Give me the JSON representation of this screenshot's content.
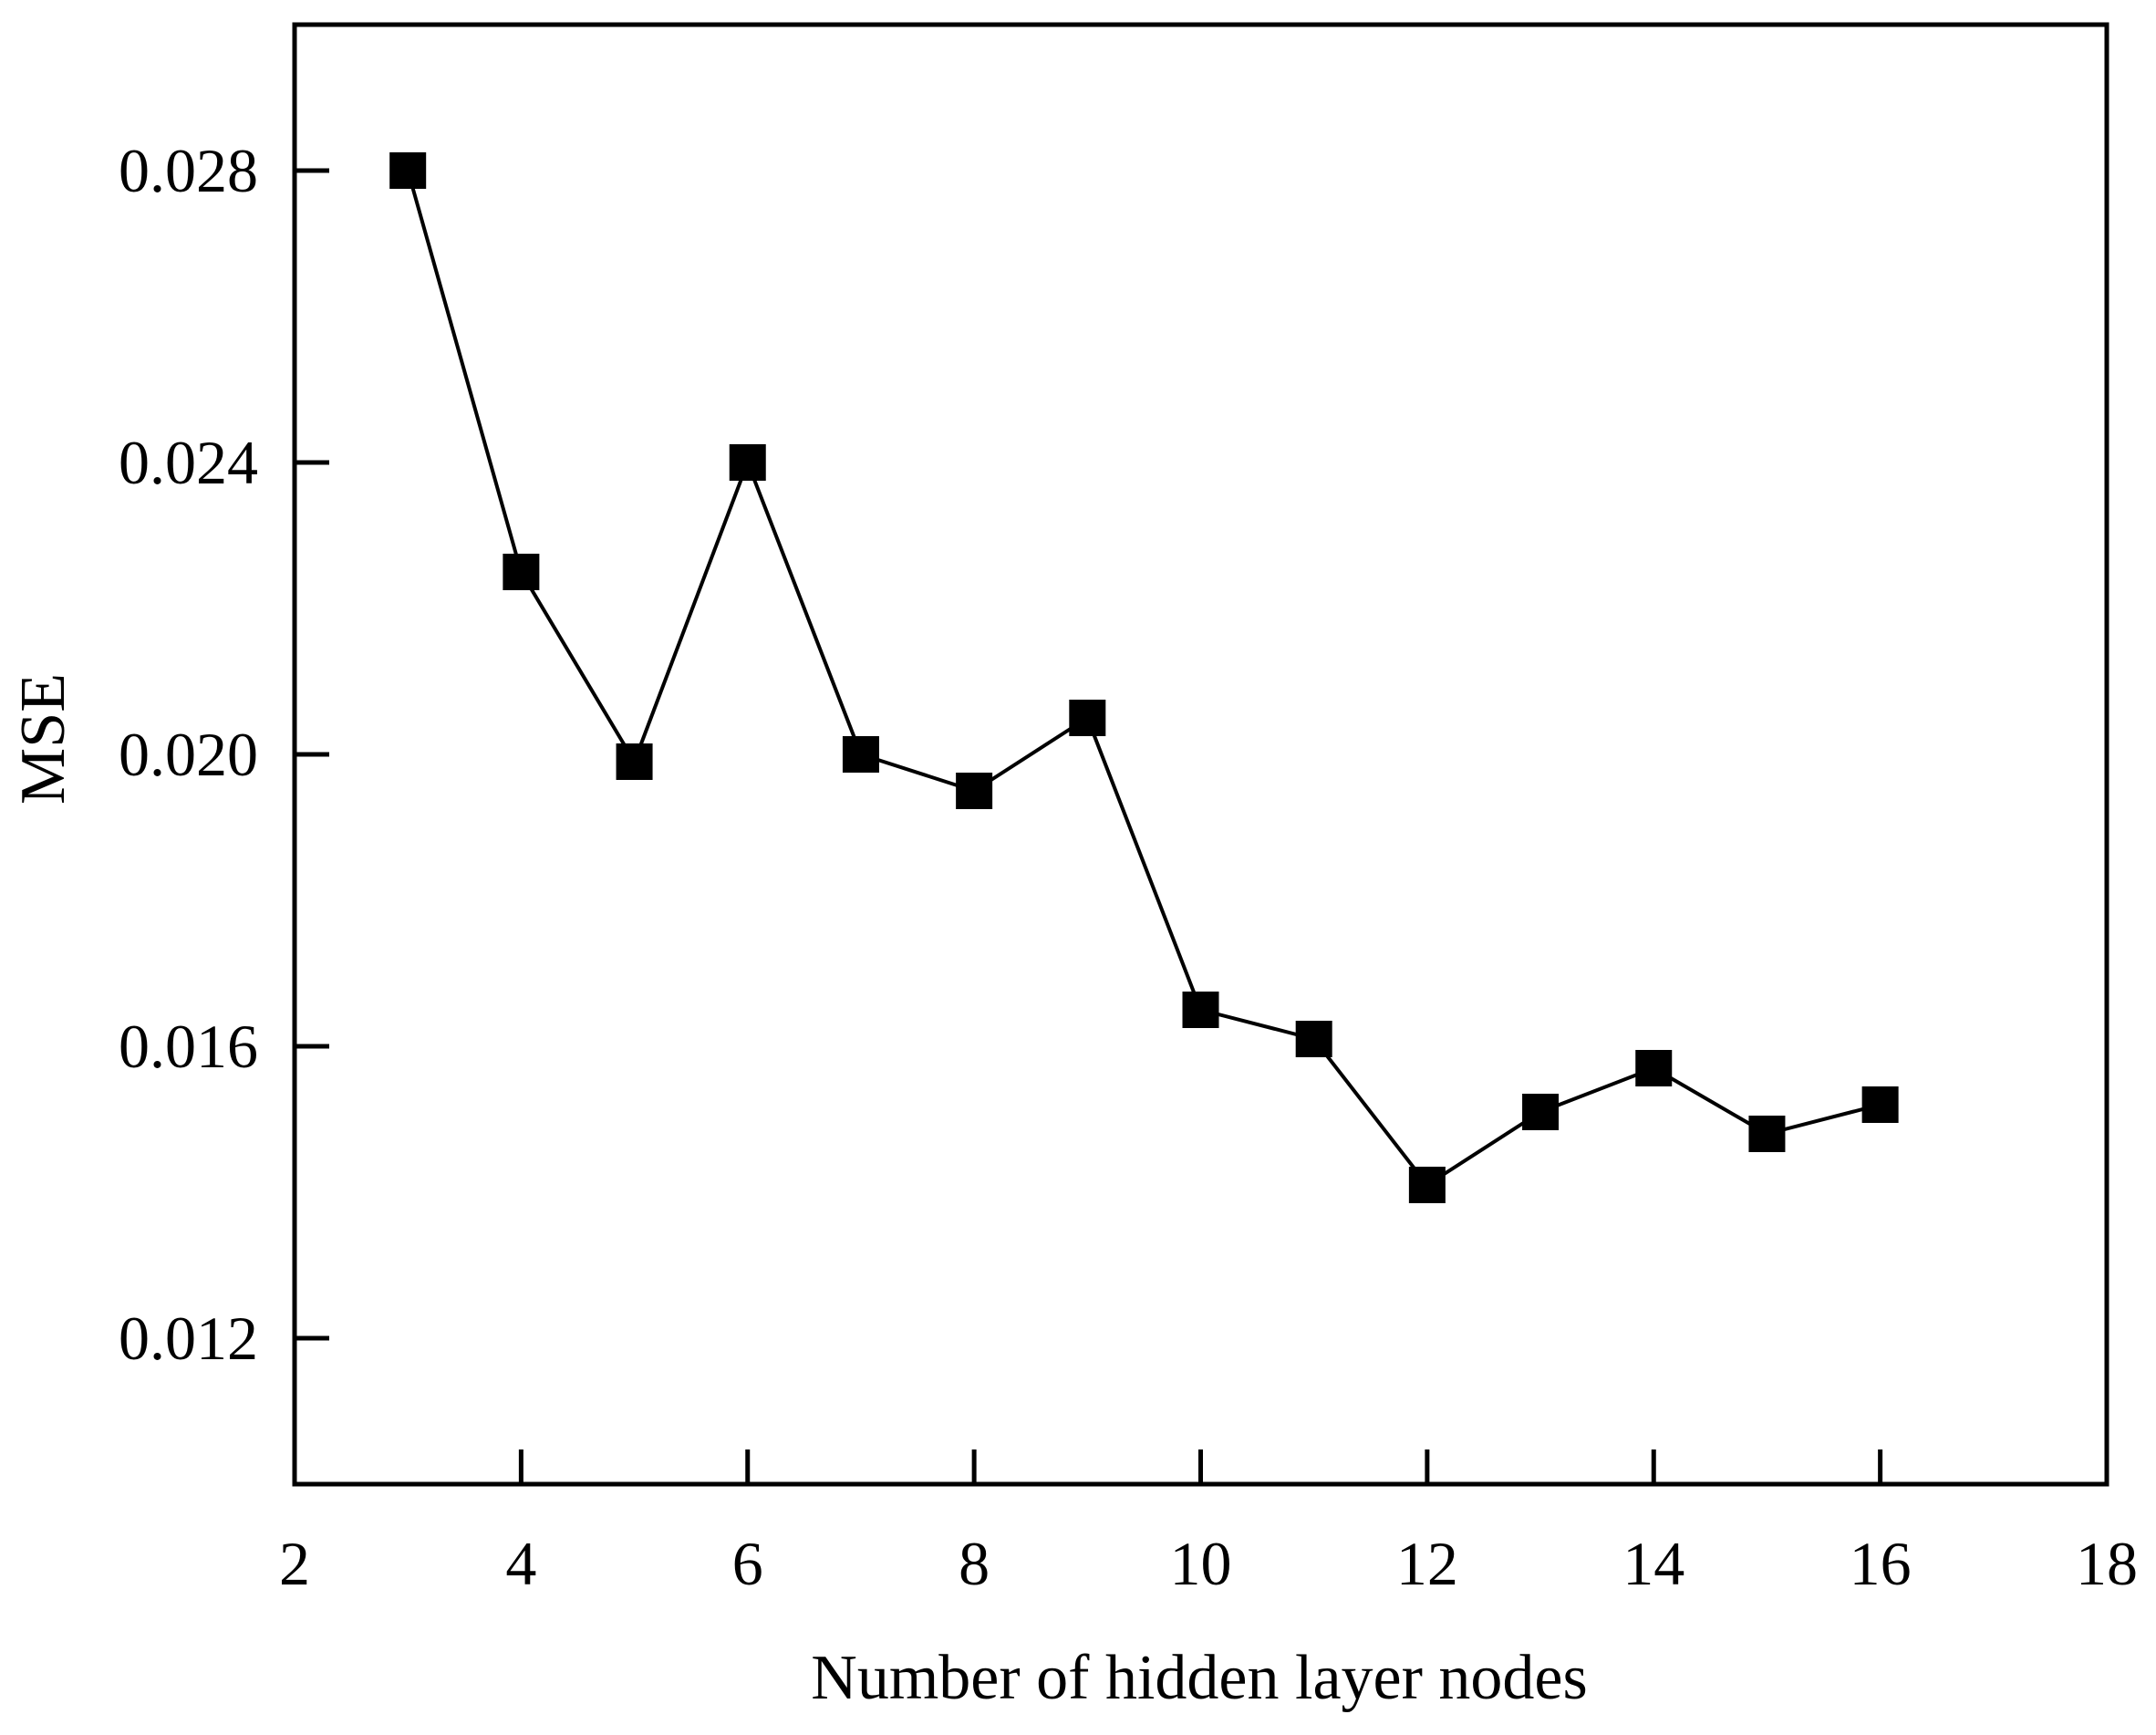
{
  "chart_data": {
    "type": "line",
    "title": "",
    "xlabel": "Number of hidden layer nodes",
    "ylabel": "MSE",
    "xlim": [
      2,
      18
    ],
    "ylim": [
      0.01,
      0.03
    ],
    "xticks": [
      2,
      4,
      6,
      8,
      10,
      12,
      14,
      16,
      18
    ],
    "xtick_labels": [
      "2",
      "4",
      "6",
      "8",
      "10",
      "12",
      "14",
      "16",
      "18"
    ],
    "yticks": [
      0.012,
      0.016,
      0.02,
      0.024,
      0.028
    ],
    "ytick_labels": [
      "0.012",
      "0.016",
      "0.020",
      "0.024",
      "0.028"
    ],
    "grid": false,
    "legend": "none",
    "series": [
      {
        "marker": "square",
        "color": "#000000",
        "x": [
          3,
          4,
          5,
          6,
          7,
          8,
          9,
          10,
          11,
          12,
          13,
          14,
          15,
          16
        ],
        "y": [
          0.028,
          0.0225,
          0.0199,
          0.024,
          0.02,
          0.0195,
          0.0205,
          0.0165,
          0.0161,
          0.0141,
          0.0151,
          0.0157,
          0.0148,
          0.0152
        ]
      }
    ]
  }
}
